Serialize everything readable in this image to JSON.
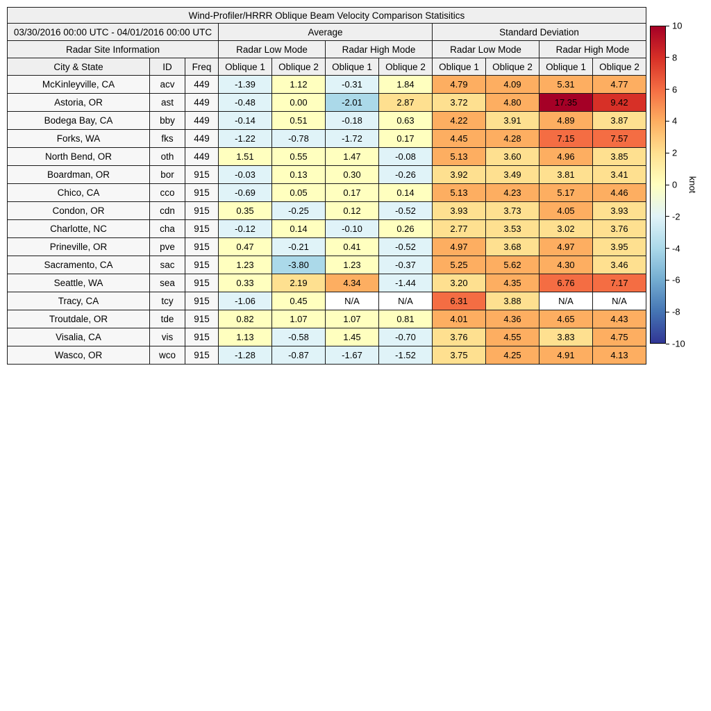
{
  "chart_data": {
    "type": "heatmap-table",
    "title": "Wind-Profiler/HRRR Oblique Beam Velocity Comparison Statisitics",
    "header": {
      "date_range": "03/30/2016 00:00 UTC - 04/01/2016 00:00 UTC",
      "average": "Average",
      "std_dev": "Standard Deviation",
      "site_info": "Radar Site Information",
      "low_mode": "Radar Low Mode",
      "high_mode": "Radar High Mode",
      "col_city": "City & State",
      "col_id": "ID",
      "col_freq": "Freq",
      "oblique1": "Oblique 1",
      "oblique2": "Oblique 2"
    },
    "rows": [
      {
        "city": "McKinleyville, CA",
        "id": "acv",
        "freq": "449",
        "values": [
          "-1.39",
          "1.12",
          "-0.31",
          "1.84",
          "4.79",
          "4.09",
          "5.31",
          "4.77"
        ]
      },
      {
        "city": "Astoria, OR",
        "id": "ast",
        "freq": "449",
        "values": [
          "-0.48",
          "0.00",
          "-2.01",
          "2.87",
          "3.72",
          "4.80",
          "17.35",
          "9.42"
        ]
      },
      {
        "city": "Bodega Bay, CA",
        "id": "bby",
        "freq": "449",
        "values": [
          "-0.14",
          "0.51",
          "-0.18",
          "0.63",
          "4.22",
          "3.91",
          "4.89",
          "3.87"
        ]
      },
      {
        "city": "Forks, WA",
        "id": "fks",
        "freq": "449",
        "values": [
          "-1.22",
          "-0.78",
          "-1.72",
          "0.17",
          "4.45",
          "4.28",
          "7.15",
          "7.57"
        ]
      },
      {
        "city": "North Bend, OR",
        "id": "oth",
        "freq": "449",
        "values": [
          "1.51",
          "0.55",
          "1.47",
          "-0.08",
          "5.13",
          "3.60",
          "4.96",
          "3.85"
        ]
      },
      {
        "city": "Boardman, OR",
        "id": "bor",
        "freq": "915",
        "values": [
          "-0.03",
          "0.13",
          "0.30",
          "-0.26",
          "3.92",
          "3.49",
          "3.81",
          "3.41"
        ]
      },
      {
        "city": "Chico, CA",
        "id": "cco",
        "freq": "915",
        "values": [
          "-0.69",
          "0.05",
          "0.17",
          "0.14",
          "5.13",
          "4.23",
          "5.17",
          "4.46"
        ]
      },
      {
        "city": "Condon, OR",
        "id": "cdn",
        "freq": "915",
        "values": [
          "0.35",
          "-0.25",
          "0.12",
          "-0.52",
          "3.93",
          "3.73",
          "4.05",
          "3.93"
        ]
      },
      {
        "city": "Charlotte, NC",
        "id": "cha",
        "freq": "915",
        "values": [
          "-0.12",
          "0.14",
          "-0.10",
          "0.26",
          "2.77",
          "3.53",
          "3.02",
          "3.76"
        ]
      },
      {
        "city": "Prineville, OR",
        "id": "pve",
        "freq": "915",
        "values": [
          "0.47",
          "-0.21",
          "0.41",
          "-0.52",
          "4.97",
          "3.68",
          "4.97",
          "3.95"
        ]
      },
      {
        "city": "Sacramento, CA",
        "id": "sac",
        "freq": "915",
        "values": [
          "1.23",
          "-3.80",
          "1.23",
          "-0.37",
          "5.25",
          "5.62",
          "4.30",
          "3.46"
        ]
      },
      {
        "city": "Seattle, WA",
        "id": "sea",
        "freq": "915",
        "values": [
          "0.33",
          "2.19",
          "4.34",
          "-1.44",
          "3.20",
          "4.35",
          "6.76",
          "7.17"
        ]
      },
      {
        "city": "Tracy, CA",
        "id": "tcy",
        "freq": "915",
        "values": [
          "-1.06",
          "0.45",
          "N/A",
          "N/A",
          "6.31",
          "3.88",
          "N/A",
          "N/A"
        ]
      },
      {
        "city": "Troutdale, OR",
        "id": "tde",
        "freq": "915",
        "values": [
          "0.82",
          "1.07",
          "1.07",
          "0.81",
          "4.01",
          "4.36",
          "4.65",
          "4.43"
        ]
      },
      {
        "city": "Visalia, CA",
        "id": "vis",
        "freq": "915",
        "values": [
          "1.13",
          "-0.58",
          "1.45",
          "-0.70",
          "3.76",
          "4.55",
          "3.83",
          "4.75"
        ]
      },
      {
        "city": "Wasco, OR",
        "id": "wco",
        "freq": "915",
        "values": [
          "-1.28",
          "-0.87",
          "-1.67",
          "-1.52",
          "3.75",
          "4.25",
          "4.91",
          "4.13"
        ]
      }
    ],
    "colorbar": {
      "unit": "knot",
      "min": -10,
      "max": 10,
      "bin_size": 2,
      "ticks": [
        "10",
        "8",
        "6",
        "4",
        "2",
        "0",
        "-2",
        "-4",
        "-6",
        "-8",
        "-10"
      ],
      "stops": [
        "#313695",
        "#4575b4",
        "#74add1",
        "#abd9e9",
        "#e0f3f8",
        "#ffffbf",
        "#fee090",
        "#fdae61",
        "#f46d43",
        "#d73027",
        "#a50026"
      ],
      "na_color": "#ffffff"
    }
  }
}
